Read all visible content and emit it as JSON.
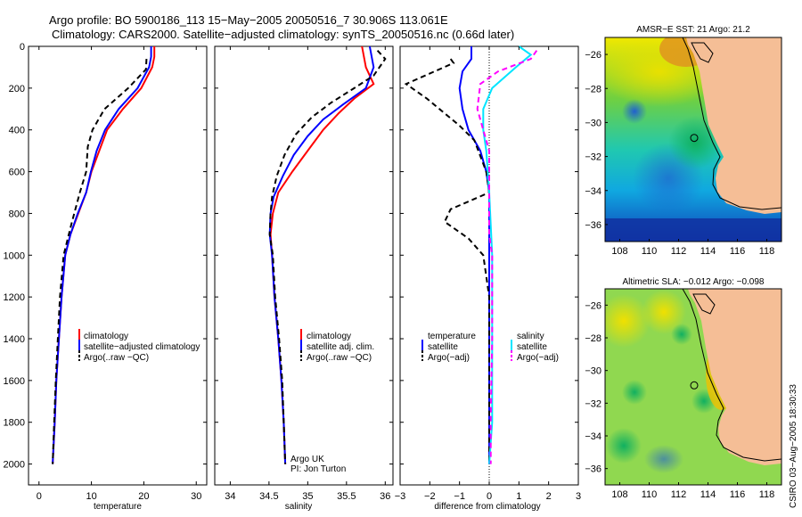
{
  "header": {
    "line1": "Argo profile: BO 5900186_113 15−May−2005 20050516_7 30.906S 113.061E",
    "line2": "Climatology: CARS2000. Satellite−adjusted climatology: synTS_20050516.nc (0.66d later)"
  },
  "colors": {
    "climatology": "#ff0000",
    "satellite": "#0000ff",
    "argo": "#000000",
    "salinity_sat": "#00e5ff",
    "salinity_argo": "#ff00ff",
    "land": "#f5be96"
  },
  "chart_data": [
    {
      "id": "temperature",
      "type": "line",
      "xlabel": "temperature",
      "ylabel": "",
      "xlim": [
        -2,
        32
      ],
      "ylim": [
        2100,
        0
      ],
      "xticks": [
        "0",
        "10",
        "20",
        "30"
      ],
      "yticks": [
        "0",
        "200",
        "400",
        "600",
        "800",
        "1000",
        "1200",
        "1400",
        "1600",
        "1800",
        "2000"
      ],
      "legend": [
        "climatology",
        "satellite−adjusted climatology",
        "Argo(..raw −QC)"
      ],
      "series": [
        {
          "name": "climatology",
          "style": "solid",
          "points": [
            [
              22,
              0
            ],
            [
              22,
              50
            ],
            [
              21.6,
              100
            ],
            [
              19.5,
              200
            ],
            [
              16,
              300
            ],
            [
              13,
              400
            ],
            [
              11.5,
              500
            ],
            [
              10,
              600
            ],
            [
              9,
              700
            ],
            [
              7.5,
              800
            ],
            [
              6,
              900
            ],
            [
              5,
              1000
            ],
            [
              4.3,
              1200
            ],
            [
              3.8,
              1400
            ],
            [
              3.3,
              1600
            ],
            [
              3,
              1800
            ],
            [
              2.6,
              2000
            ]
          ]
        },
        {
          "name": "satellite",
          "style": "solid",
          "points": [
            [
              21.4,
              0
            ],
            [
              21.4,
              50
            ],
            [
              21,
              100
            ],
            [
              18.8,
              200
            ],
            [
              15.2,
              300
            ],
            [
              12.6,
              400
            ],
            [
              11,
              500
            ],
            [
              9.9,
              600
            ],
            [
              9,
              700
            ],
            [
              7.4,
              800
            ],
            [
              6,
              900
            ],
            [
              5,
              1000
            ],
            [
              4.3,
              1200
            ],
            [
              3.8,
              1400
            ],
            [
              3.3,
              1600
            ],
            [
              3,
              1800
            ],
            [
              2.6,
              2000
            ]
          ]
        },
        {
          "name": "argo",
          "style": "dashed",
          "points": [
            [
              20.5,
              60
            ],
            [
              20.4,
              110
            ],
            [
              17,
              200
            ],
            [
              12.5,
              300
            ],
            [
              10.2,
              400
            ],
            [
              9.3,
              480
            ],
            [
              9,
              600
            ],
            [
              7.8,
              700
            ],
            [
              6.2,
              850
            ],
            [
              4.7,
              1000
            ],
            [
              4,
              1200
            ],
            [
              3.6,
              1400
            ],
            [
              3.2,
              1600
            ],
            [
              2.9,
              1800
            ],
            [
              2.6,
              2000
            ]
          ]
        }
      ]
    },
    {
      "id": "salinity",
      "type": "line",
      "xlabel": "salinity",
      "ylabel": "",
      "xlim": [
        33.8,
        36.1
      ],
      "ylim": [
        2100,
        0
      ],
      "xticks": [
        "34",
        "34.5",
        "35",
        "35.5",
        "36"
      ],
      "legend": [
        "climatology",
        "satellite adj. clim.",
        "Argo(..raw −QC)"
      ],
      "annotation": [
        "Argo UK",
        "PI: Jon Turton"
      ],
      "series": [
        {
          "name": "climatology",
          "style": "solid",
          "points": [
            [
              35.7,
              0
            ],
            [
              35.75,
              100
            ],
            [
              35.85,
              180
            ],
            [
              35.6,
              250
            ],
            [
              35.4,
              320
            ],
            [
              35.2,
              400
            ],
            [
              35.0,
              500
            ],
            [
              34.8,
              600
            ],
            [
              34.62,
              700
            ],
            [
              34.55,
              800
            ],
            [
              34.52,
              900
            ],
            [
              34.54,
              1000
            ],
            [
              34.57,
              1200
            ],
            [
              34.62,
              1400
            ],
            [
              34.66,
              1600
            ],
            [
              34.69,
              1800
            ],
            [
              34.71,
              2000
            ]
          ]
        },
        {
          "name": "satellite",
          "style": "solid",
          "points": [
            [
              35.8,
              0
            ],
            [
              35.85,
              100
            ],
            [
              35.75,
              200
            ],
            [
              35.45,
              280
            ],
            [
              35.2,
              350
            ],
            [
              35.0,
              430
            ],
            [
              34.82,
              520
            ],
            [
              34.68,
              620
            ],
            [
              34.56,
              720
            ],
            [
              34.52,
              800
            ],
            [
              34.51,
              900
            ],
            [
              34.54,
              1000
            ],
            [
              34.57,
              1200
            ],
            [
              34.62,
              1400
            ],
            [
              34.66,
              1600
            ],
            [
              34.69,
              1800
            ],
            [
              34.71,
              2000
            ]
          ]
        },
        {
          "name": "argo",
          "style": "dashed",
          "points": [
            [
              35.9,
              20
            ],
            [
              36.0,
              60
            ],
            [
              35.85,
              140
            ],
            [
              35.6,
              200
            ],
            [
              35.3,
              270
            ],
            [
              35.05,
              340
            ],
            [
              34.85,
              420
            ],
            [
              34.7,
              520
            ],
            [
              34.6,
              620
            ],
            [
              34.54,
              720
            ],
            [
              34.52,
              800
            ],
            [
              34.51,
              900
            ],
            [
              34.55,
              1000
            ],
            [
              34.58,
              1200
            ],
            [
              34.63,
              1400
            ],
            [
              34.67,
              1600
            ],
            [
              34.69,
              1800
            ],
            [
              34.71,
              2000
            ]
          ]
        }
      ]
    },
    {
      "id": "difference",
      "type": "line",
      "xlabel": "difference from climatology",
      "ylabel": "",
      "xlim": [
        -3,
        3
      ],
      "ylim": [
        2100,
        0
      ],
      "xticks": [
        "−3",
        "−2",
        "−1",
        "0",
        "1",
        "2",
        "3"
      ],
      "legend_left": [
        "temperature",
        "satellite",
        "Argo(−adj)"
      ],
      "legend_right": [
        "salinity",
        "satellite",
        "Argo(−adj)"
      ],
      "series": [
        {
          "name": "temperature satellite",
          "style": "solid",
          "color": "#0000ff",
          "points": [
            [
              -0.6,
              0
            ],
            [
              -0.6,
              60
            ],
            [
              -0.9,
              120
            ],
            [
              -1.0,
              200
            ],
            [
              -0.9,
              300
            ],
            [
              -0.7,
              400
            ],
            [
              -0.3,
              500
            ],
            [
              -0.1,
              600
            ],
            [
              0,
              700
            ],
            [
              0,
              800
            ],
            [
              0,
              900
            ],
            [
              0,
              1000
            ],
            [
              0,
              1400
            ],
            [
              0,
              1600
            ],
            [
              0,
              2000
            ]
          ]
        },
        {
          "name": "temperature argo",
          "style": "dashed",
          "color": "#000000",
          "points": [
            [
              -1.3,
              60
            ],
            [
              -1.2,
              80
            ],
            [
              -2.8,
              180
            ],
            [
              -2.1,
              250
            ],
            [
              -1.0,
              380
            ],
            [
              -0.5,
              450
            ],
            [
              -0.1,
              600
            ],
            [
              0,
              700
            ],
            [
              -1.3,
              780
            ],
            [
              -1.5,
              840
            ],
            [
              -0.7,
              920
            ],
            [
              -0.2,
              1000
            ],
            [
              0,
              1200
            ],
            [
              0,
              1600
            ],
            [
              0,
              2000
            ]
          ]
        },
        {
          "name": "salinity satellite",
          "style": "solid",
          "color": "#00e5ff",
          "points": [
            [
              1.0,
              0
            ],
            [
              1.4,
              40
            ],
            [
              0.9,
              100
            ],
            [
              0.1,
              200
            ],
            [
              -0.2,
              300
            ],
            [
              -0.2,
              400
            ],
            [
              -0.1,
              500
            ],
            [
              0,
              700
            ],
            [
              0.1,
              1000
            ],
            [
              0.1,
              1400
            ],
            [
              0.1,
              1800
            ],
            [
              0,
              2000
            ]
          ]
        },
        {
          "name": "salinity argo",
          "style": "dashed",
          "color": "#ff00ff",
          "points": [
            [
              1.6,
              20
            ],
            [
              1.4,
              60
            ],
            [
              0.3,
              120
            ],
            [
              -0.3,
              180
            ],
            [
              -0.4,
              300
            ],
            [
              -0.2,
              400
            ],
            [
              0,
              500
            ],
            [
              0,
              700
            ],
            [
              0,
              900
            ],
            [
              0.1,
              1000
            ],
            [
              0.1,
              1400
            ],
            [
              0.05,
              1800
            ],
            [
              0.05,
              2000
            ]
          ]
        }
      ]
    }
  ],
  "maps": [
    {
      "id": "sst",
      "title": "AMSR−E SST: 21 Argo: 21.2",
      "xticks": [
        "108",
        "110",
        "112",
        "114",
        "116",
        "118"
      ],
      "yticks": [
        "−26",
        "−28",
        "−30",
        "−32",
        "−34",
        "−36"
      ],
      "xlim": [
        107,
        119
      ],
      "ylim": [
        -37,
        -25
      ],
      "argo_position": [
        113.061,
        -30.906
      ]
    },
    {
      "id": "sla",
      "title": "Altimetric SLA: −0.012 Argo: −0.098",
      "xticks": [
        "108",
        "110",
        "112",
        "114",
        "116",
        "118"
      ],
      "yticks": [
        "−26",
        "−28",
        "−30",
        "−32",
        "−34",
        "−36"
      ],
      "xlim": [
        107,
        119
      ],
      "ylim": [
        -37,
        -25
      ],
      "argo_position": [
        113.061,
        -30.906
      ]
    }
  ],
  "footer": {
    "stamp": "CSIRO 03−Aug−2005 18:30:33"
  }
}
